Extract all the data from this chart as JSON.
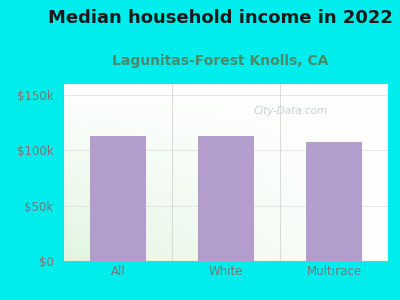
{
  "title": "Median household income in 2022",
  "subtitle": "Lagunitas-Forest Knolls, CA",
  "categories": [
    "All",
    "White",
    "Multirace"
  ],
  "values": [
    113000,
    113000,
    108000
  ],
  "bar_color": "#b39dcc",
  "background_color": "#00eded",
  "yticks": [
    0,
    50000,
    100000,
    150000
  ],
  "ytick_labels": [
    "$0",
    "$50k",
    "$100k",
    "$150k"
  ],
  "ylim": [
    0,
    160000
  ],
  "title_fontsize": 13,
  "subtitle_fontsize": 10,
  "tick_fontsize": 8.5,
  "title_color": "#1a1a1a",
  "subtitle_color": "#4a8a6a",
  "tick_color": "#777777",
  "watermark_text": "City-Data.com",
  "watermark_color": "#c0c8c8"
}
